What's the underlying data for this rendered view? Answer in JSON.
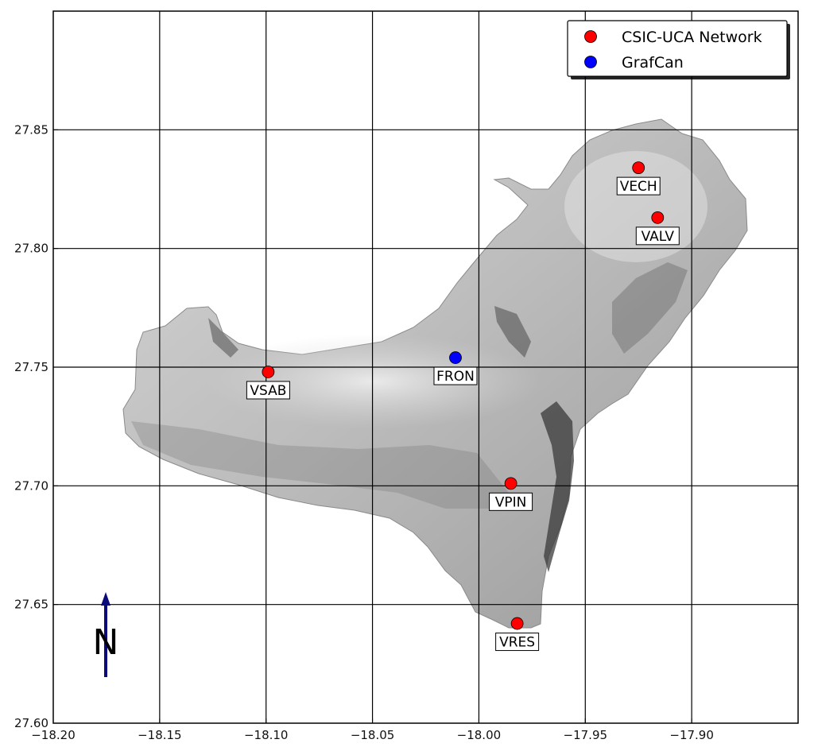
{
  "map": {
    "x_ticks": [
      "−18.20",
      "−18.15",
      "−18.10",
      "−18.05",
      "−18.00",
      "−17.95",
      "−17.90"
    ],
    "y_ticks": [
      "27.60",
      "27.65",
      "27.70",
      "27.75",
      "27.80",
      "27.85"
    ],
    "x_tick_values": [
      -18.2,
      -18.15,
      -18.1,
      -18.05,
      -18.0,
      -17.95,
      -17.9
    ],
    "y_tick_values": [
      27.6,
      27.65,
      27.7,
      27.75,
      27.8,
      27.85
    ],
    "xlim": [
      -18.2,
      -17.85
    ],
    "ylim": [
      27.6,
      27.9
    ],
    "grid": true,
    "north_arrow_label": "N",
    "legend": {
      "placement": "top-right",
      "entries": [
        {
          "label": "CSIC-UCA Network",
          "color": "#ff0000"
        },
        {
          "label": "GrafCan",
          "color": "#0000ff"
        }
      ]
    },
    "stations": [
      {
        "name": "VECH",
        "lon": -17.925,
        "lat": 27.834,
        "network": "CSIC-UCA Network",
        "color": "#ff0000"
      },
      {
        "name": "VALV",
        "lon": -17.916,
        "lat": 27.813,
        "network": "CSIC-UCA Network",
        "color": "#ff0000"
      },
      {
        "name": "VSAB",
        "lon": -18.099,
        "lat": 27.748,
        "network": "CSIC-UCA Network",
        "color": "#ff0000"
      },
      {
        "name": "FRON",
        "lon": -18.011,
        "lat": 27.754,
        "network": "GrafCan",
        "color": "#0000ff"
      },
      {
        "name": "VPIN",
        "lon": -17.985,
        "lat": 27.701,
        "network": "CSIC-UCA Network",
        "color": "#ff0000"
      },
      {
        "name": "VRES",
        "lon": -17.982,
        "lat": 27.642,
        "network": "CSIC-UCA Network",
        "color": "#ff0000"
      }
    ]
  }
}
